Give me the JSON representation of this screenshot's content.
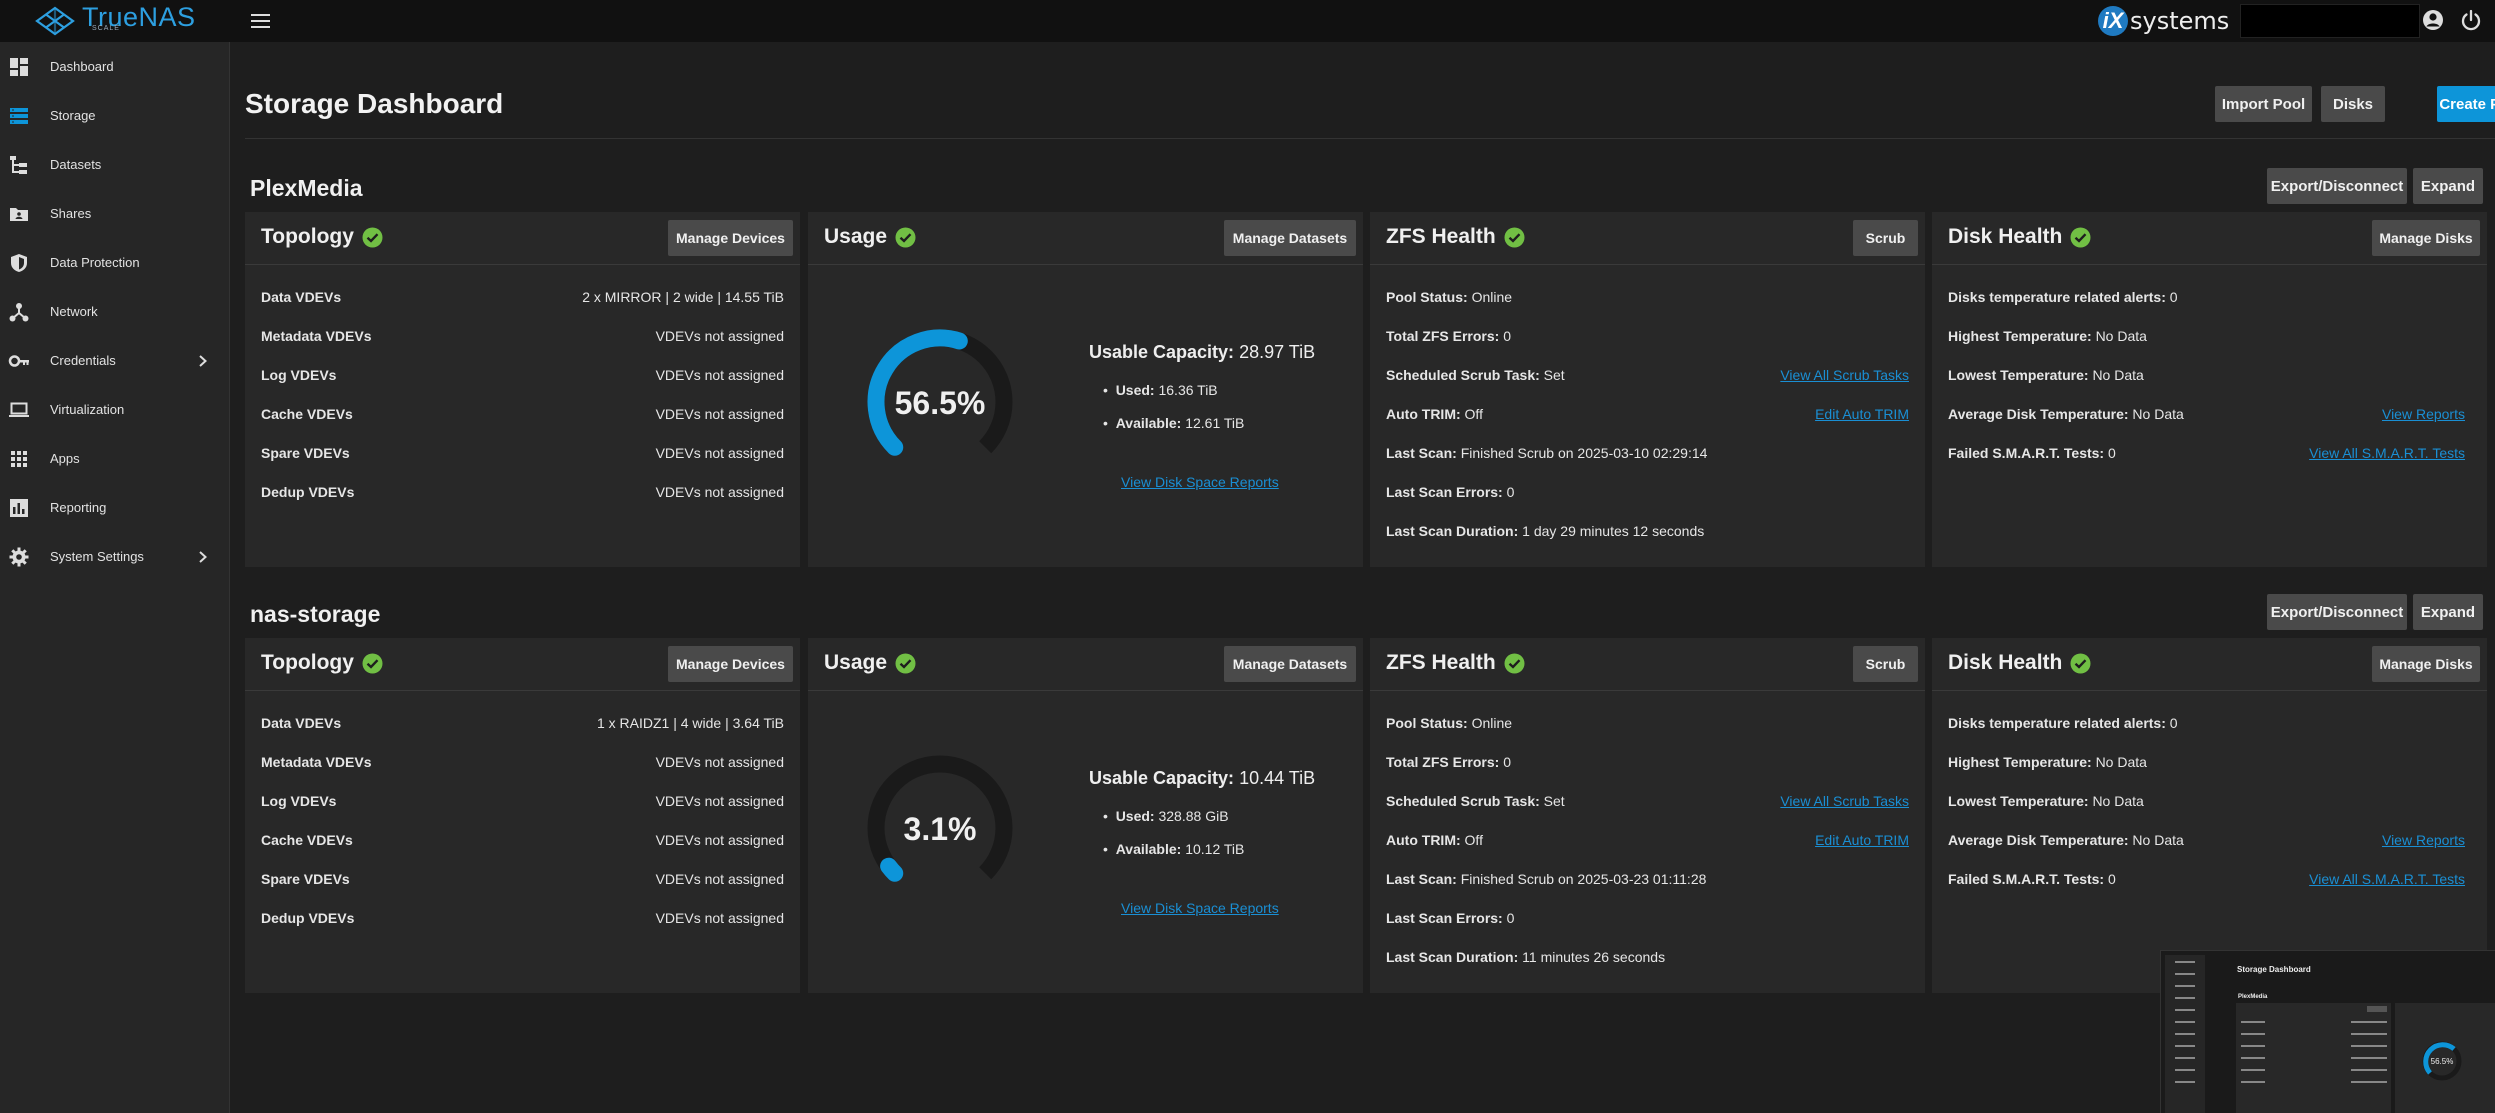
{
  "header": {
    "logo_text": "TrueNAS",
    "logo_sub": "SCALE",
    "vendor_text": "systems",
    "vendor_mark": "iX"
  },
  "sidebar": {
    "items": [
      {
        "label": "Dashboard",
        "icon": "dashboard-icon"
      },
      {
        "label": "Storage",
        "icon": "storage-icon"
      },
      {
        "label": "Datasets",
        "icon": "datasets-icon"
      },
      {
        "label": "Shares",
        "icon": "shares-icon"
      },
      {
        "label": "Data Protection",
        "icon": "shield-icon"
      },
      {
        "label": "Network",
        "icon": "network-icon"
      },
      {
        "label": "Credentials",
        "icon": "key-icon"
      },
      {
        "label": "Virtualization",
        "icon": "laptop-icon"
      },
      {
        "label": "Apps",
        "icon": "apps-grid-icon"
      },
      {
        "label": "Reporting",
        "icon": "reporting-icon"
      },
      {
        "label": "System Settings",
        "icon": "gear-icon"
      }
    ]
  },
  "page": {
    "title": "Storage Dashboard",
    "import_pool": "Import Pool",
    "disks": "Disks",
    "create_pool": "Create Pool"
  },
  "common": {
    "export_disconnect": "Export/Disconnect",
    "expand": "Expand",
    "topology": "Topology",
    "usage": "Usage",
    "zfs_health": "ZFS Health",
    "disk_health": "Disk Health",
    "manage_devices": "Manage Devices",
    "manage_datasets": "Manage Datasets",
    "scrub": "Scrub",
    "manage_disks": "Manage Disks",
    "data_vdevs": "Data VDEVs",
    "metadata_vdevs": "Metadata VDEVs",
    "log_vdevs": "Log VDEVs",
    "cache_vdevs": "Cache VDEVs",
    "spare_vdevs": "Spare VDEVs",
    "dedup_vdevs": "Dedup VDEVs",
    "not_assigned": "VDEVs not assigned",
    "usable_capacity": "Usable Capacity:",
    "used": "Used:",
    "available": "Available:",
    "view_disk_space_reports": "View Disk Space Reports",
    "pool_status": "Pool Status:",
    "total_zfs_errors": "Total ZFS Errors:",
    "scheduled_scrub_task": "Scheduled Scrub Task:",
    "auto_trim": "Auto TRIM:",
    "last_scan": "Last Scan:",
    "last_scan_errors": "Last Scan Errors:",
    "last_scan_duration": "Last Scan Duration:",
    "view_all_scrub_tasks": "View All Scrub Tasks",
    "edit_auto_trim": "Edit Auto TRIM",
    "disks_temp_alerts": "Disks temperature related alerts:",
    "highest_temp": "Highest Temperature:",
    "lowest_temp": "Lowest Temperature:",
    "avg_disk_temp": "Average Disk Temperature:",
    "failed_smart": "Failed S.M.A.R.T. Tests:",
    "view_reports": "View Reports",
    "view_all_smart_tests": "View All S.M.A.R.T. Tests"
  },
  "pools": [
    {
      "name": "PlexMedia",
      "data_vdevs": "2 x MIRROR | 2 wide | 14.55 TiB",
      "usage_percent": 56.5,
      "usage_text": "56.5%",
      "usable_capacity": "28.97 TiB",
      "used": "16.36 TiB",
      "available": "12.61 TiB",
      "pool_status": "Online",
      "total_zfs_errors": "0",
      "scheduled_scrub": "Set",
      "auto_trim": "Off",
      "last_scan": "Finished Scrub on 2025-03-10 02:29:14",
      "last_scan_errors": "0",
      "last_scan_duration": "1 day 29 minutes 12 seconds",
      "temp_alerts": "0",
      "highest_temp": "No Data",
      "lowest_temp": "No Data",
      "avg_temp": "No Data",
      "failed_smart": "0"
    },
    {
      "name": "nas-storage",
      "data_vdevs": "1 x RAIDZ1 | 4 wide | 3.64 TiB",
      "usage_percent": 3.1,
      "usage_text": "3.1%",
      "usable_capacity": "10.44 TiB",
      "used": "328.88 GiB",
      "available": "10.12 TiB",
      "pool_status": "Online",
      "total_zfs_errors": "0",
      "scheduled_scrub": "Set",
      "auto_trim": "Off",
      "last_scan": "Finished Scrub on 2025-03-23 01:11:28",
      "last_scan_errors": "0",
      "last_scan_duration": "11 minutes 26 seconds",
      "temp_alerts": "0",
      "highest_temp": "No Data",
      "lowest_temp": "No Data",
      "avg_temp": "No Data",
      "failed_smart": "0"
    }
  ],
  "thumbnail": {
    "title": "Storage Dashboard",
    "pool": "PlexMedia",
    "gauge": "56.5%"
  },
  "colors": {
    "accent": "#0d95d9",
    "ok_green": "#71bf44",
    "gauge_track": "#1a1a1a"
  }
}
